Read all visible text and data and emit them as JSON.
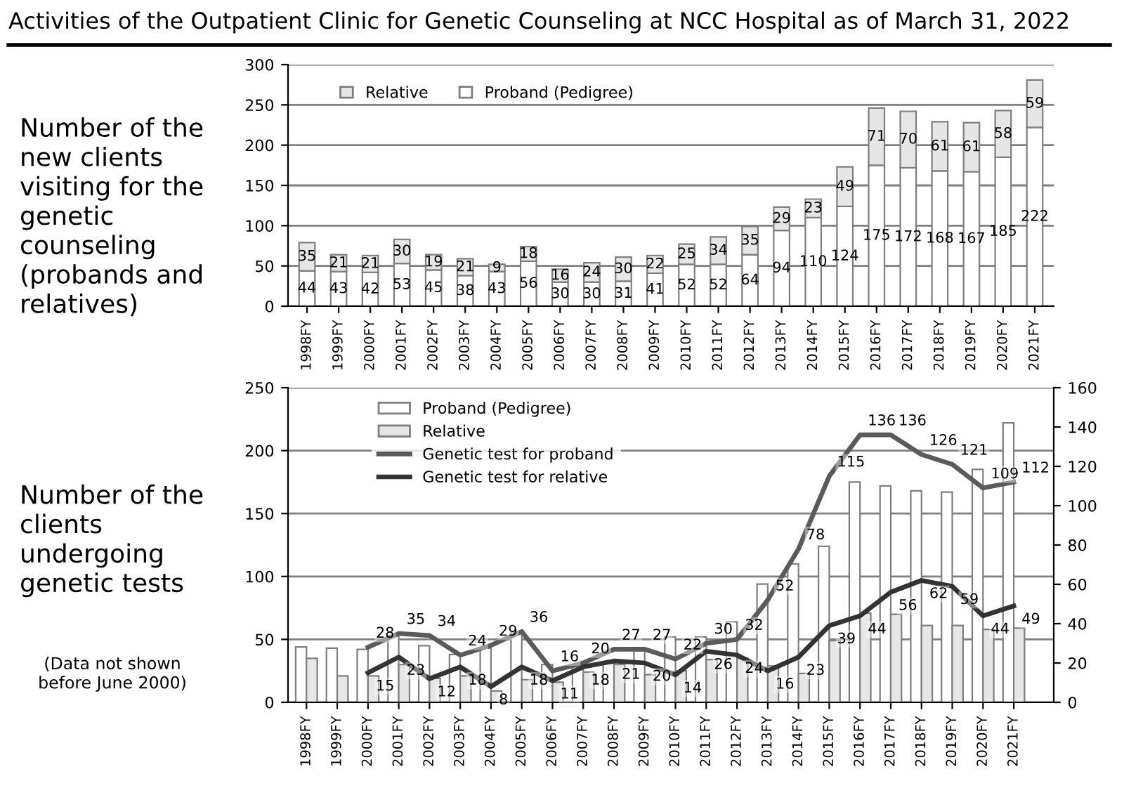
{
  "chart_data": [
    {
      "type": "bar",
      "title": "Activities of the Outpatient Clinic for Genetic Counseling at NCC Hospital as of March 31, 2022",
      "stacked": true,
      "categories": [
        "1998FY",
        "1999FY",
        "2000FY",
        "2001FY",
        "2002FY",
        "2003FY",
        "2004FY",
        "2005FY",
        "2006FY",
        "2007FY",
        "2008FY",
        "2009FY",
        "2010FY",
        "2011FY",
        "2012FY",
        "2013FY",
        "2014FY",
        "2015FY",
        "2016FY",
        "2017FY",
        "2018FY",
        "2019FY",
        "2020FY",
        "2021FY"
      ],
      "series": [
        {
          "name": "Proband (Pedigree)",
          "color": "#ffffff",
          "values": [
            44,
            43,
            42,
            53,
            45,
            38,
            43,
            56,
            30,
            30,
            31,
            41,
            52,
            52,
            64,
            94,
            110,
            124,
            175,
            172,
            168,
            167,
            185,
            222
          ]
        },
        {
          "name": "Relative",
          "color": "#e6e6e6",
          "values": [
            35,
            21,
            21,
            30,
            19,
            21,
            9,
            18,
            16,
            24,
            30,
            22,
            25,
            34,
            35,
            29,
            23,
            49,
            71,
            70,
            61,
            61,
            58,
            59
          ]
        }
      ],
      "data_labels": true,
      "ylim": [
        0,
        300
      ],
      "yticks": [
        0,
        50,
        100,
        150,
        200,
        250,
        300
      ],
      "grid": "y",
      "legend": "top left",
      "annotations": [
        "Number of the\nnew clients\nvisiting for the\ngenetic\ncounseling\n(probands and\nrelatives)"
      ]
    },
    {
      "type": "bar",
      "categories": [
        "1998FY",
        "1999FY",
        "2000FY",
        "2001FY",
        "2002FY",
        "2003FY",
        "2004FY",
        "2005FY",
        "2006FY",
        "2007FY",
        "2008FY",
        "2009FY",
        "2010FY",
        "2011FY",
        "2012FY",
        "2013FY",
        "2014FY",
        "2015FY",
        "2016FY",
        "2017FY",
        "2018FY",
        "2019FY",
        "2020FY",
        "2021FY"
      ],
      "series": [
        {
          "name": "Proband (Pedigree)",
          "color": "#ffffff",
          "values": [
            44,
            43,
            42,
            53,
            45,
            38,
            43,
            56,
            30,
            30,
            31,
            41,
            52,
            52,
            64,
            94,
            110,
            124,
            175,
            172,
            168,
            167,
            185,
            222
          ]
        },
        {
          "name": "Relative",
          "color": "#e6e6e6",
          "values": [
            35,
            21,
            21,
            30,
            19,
            21,
            9,
            18,
            16,
            24,
            30,
            22,
            25,
            34,
            35,
            29,
            23,
            49,
            71,
            70,
            61,
            61,
            58,
            59
          ]
        },
        {
          "name": "Genetic test for proband",
          "type": "line",
          "axis": "y2",
          "color": "#5a5a5a",
          "values": [
            null,
            null,
            28,
            35,
            34,
            24,
            29,
            36,
            16,
            20,
            27,
            27,
            22,
            30,
            32,
            52,
            78,
            115,
            136,
            136,
            126,
            121,
            109,
            112
          ],
          "value_labels": [
            null,
            null,
            "28",
            "35",
            "34",
            "24",
            "29",
            "36",
            "16",
            "20",
            "27",
            "27",
            "22",
            "30",
            "32",
            "52",
            "78",
            "115",
            "136",
            "136",
            "126",
            "121",
            "109",
            "112"
          ]
        },
        {
          "name": "Genetic test for relative",
          "type": "line",
          "axis": "y2",
          "color": "#333333",
          "values": [
            null,
            null,
            15,
            23,
            12,
            18,
            8,
            18,
            11,
            18,
            21,
            20,
            14,
            26,
            24,
            16,
            23,
            39,
            44,
            56,
            62,
            59,
            44,
            49
          ],
          "value_labels": [
            null,
            null,
            "15",
            "23",
            "12",
            "18",
            "8",
            "18",
            "11",
            "18",
            "21",
            "20",
            "14",
            "26",
            "24",
            "16",
            "23",
            "39",
            "44",
            "56",
            "62",
            "59",
            "44",
            "49"
          ]
        }
      ],
      "ylim": [
        0,
        250
      ],
      "yticks": [
        0,
        50,
        100,
        150,
        200,
        250
      ],
      "y2lim": [
        0,
        160
      ],
      "y2ticks": [
        0,
        20,
        40,
        60,
        80,
        100,
        120,
        140,
        160
      ],
      "grid": "y",
      "legend": "top left",
      "marker": "none",
      "line_style": "solid",
      "annotations": [
        "Number of the\nclients\nundergoing\ngenetic tests",
        "(Data not shown\nbefore June 2000)"
      ]
    }
  ]
}
